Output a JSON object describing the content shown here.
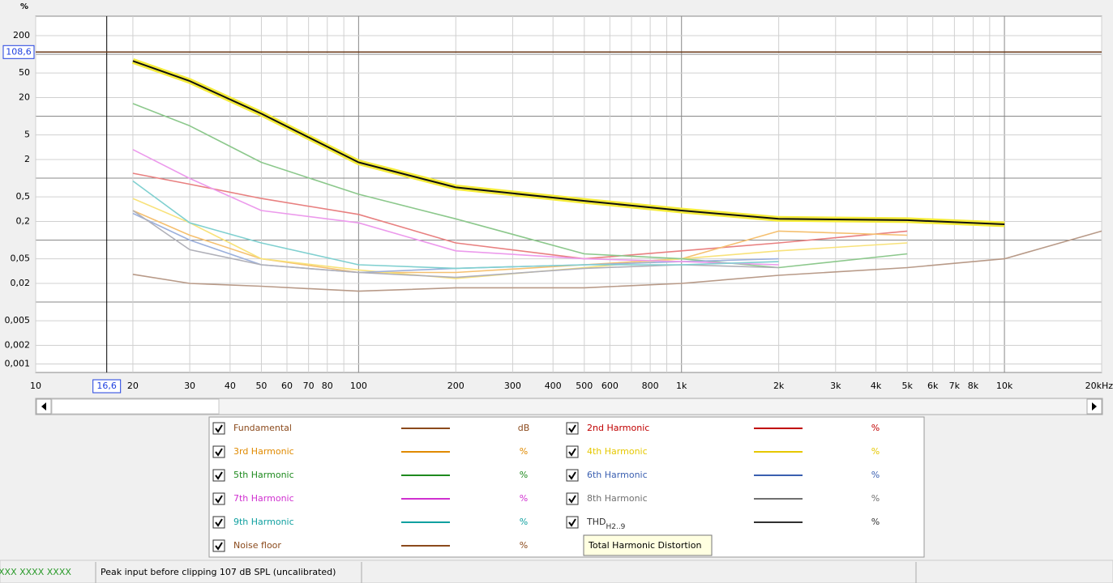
{
  "chart_data": {
    "type": "line",
    "y_unit": "%",
    "x_log": true,
    "y_log": true,
    "grid": true,
    "xlim": [
      10,
      20000
    ],
    "ylim": [
      0.00073,
      412
    ],
    "xticks": [
      10,
      20,
      30,
      40,
      50,
      60,
      70,
      80,
      100,
      200,
      300,
      400,
      500,
      600,
      800,
      {
        "value": 1000,
        "label": "1k"
      },
      {
        "value": 2000,
        "label": "2k"
      },
      {
        "value": 3000,
        "label": "3k"
      },
      {
        "value": 4000,
        "label": "4k"
      },
      {
        "value": 5000,
        "label": "5k"
      },
      {
        "value": 6000,
        "label": "6k"
      },
      {
        "value": 7000,
        "label": "7k"
      },
      {
        "value": 8000,
        "label": "8k"
      },
      {
        "value": 10000,
        "label": "10k"
      },
      {
        "value": 20000,
        "label": "20kHz"
      }
    ],
    "x_minor_grid": [
      90,
      700,
      900,
      9000
    ],
    "yticks": [
      200,
      50,
      20,
      5,
      2,
      {
        "value": 0.5,
        "label": "0,5"
      },
      {
        "value": 0.2,
        "label": "0,2"
      },
      {
        "value": 0.05,
        "label": "0,05"
      },
      {
        "value": 0.02,
        "label": "0,02"
      },
      {
        "value": 0.005,
        "label": "0,005"
      },
      {
        "value": 0.002,
        "label": "0,002"
      },
      {
        "value": 0.001,
        "label": "0,001"
      }
    ],
    "y_decade_grid": [
      100,
      10,
      1,
      0.1,
      0.01
    ],
    "cursor": {
      "x": 16.6,
      "x_label": "16,6",
      "y": 108.6,
      "y_label": "108,6"
    },
    "fundamental": {
      "name": "Fundamental",
      "unit": "dB",
      "color": "#8b4a1c",
      "checked": true
    },
    "x": [
      20,
      30,
      50,
      100,
      200,
      500,
      1000,
      2000,
      5000,
      10000,
      20000
    ],
    "series": [
      {
        "name": "2nd Harmonic",
        "unit": "%",
        "color": "#c00000",
        "trace_color": "#e88080",
        "checked": true,
        "values": [
          1.2,
          0.8,
          0.47,
          0.26,
          0.09,
          0.05,
          0.067,
          0.09,
          0.14,
          null,
          null
        ]
      },
      {
        "name": "3rd Harmonic",
        "unit": "%",
        "color": "#e08a00",
        "trace_color": "#f5c070",
        "checked": true,
        "values": [
          0.3,
          0.12,
          0.05,
          0.03,
          0.03,
          0.04,
          0.05,
          0.14,
          0.12,
          null,
          null
        ]
      },
      {
        "name": "4th Harmonic",
        "unit": "%",
        "color": "#e6c800",
        "trace_color": "#f8e27a",
        "checked": true,
        "values": [
          0.47,
          0.19,
          0.05,
          0.033,
          0.024,
          0.036,
          0.05,
          0.067,
          0.09,
          null,
          null
        ]
      },
      {
        "name": "5th Harmonic",
        "unit": "%",
        "color": "#1e8a1e",
        "trace_color": "#8cc88c",
        "checked": true,
        "values": [
          16,
          7,
          1.8,
          0.55,
          0.22,
          0.06,
          0.05,
          0.036,
          0.06,
          null,
          null
        ]
      },
      {
        "name": "6th Harmonic",
        "unit": "%",
        "color": "#3a5fb0",
        "trace_color": "#9cb0dc",
        "checked": true,
        "values": [
          0.27,
          0.1,
          0.04,
          0.03,
          0.035,
          0.04,
          0.045,
          0.05,
          null,
          null,
          null
        ]
      },
      {
        "name": "7th Harmonic",
        "unit": "%",
        "color": "#d030d0",
        "trace_color": "#ec9aec",
        "checked": true,
        "values": [
          2.9,
          0.99,
          0.3,
          0.19,
          0.067,
          0.05,
          0.045,
          0.04,
          null,
          null,
          null
        ]
      },
      {
        "name": "8th Harmonic",
        "unit": "%",
        "color": "#707070",
        "trace_color": "#b0b0b8",
        "checked": true,
        "values": [
          0.3,
          0.07,
          0.04,
          0.03,
          0.025,
          0.035,
          0.04,
          0.036,
          null,
          null,
          null
        ]
      },
      {
        "name": "9th Harmonic",
        "unit": "%",
        "color": "#10a0a0",
        "trace_color": "#80d0d0",
        "checked": true,
        "values": [
          0.9,
          0.19,
          0.09,
          0.04,
          0.035,
          0.04,
          0.04,
          0.045,
          null,
          null,
          null
        ]
      },
      {
        "name": "THD",
        "name_sub": "H2..9",
        "unit": "%",
        "color": "#303030",
        "trace_color": "#101010",
        "highlight_color": "#f5ec3a",
        "checked": true,
        "values": [
          78,
          37,
          11,
          1.8,
          0.71,
          0.43,
          0.3,
          0.22,
          0.21,
          0.18,
          null
        ]
      },
      {
        "name": "Noise floor",
        "unit": "%",
        "color": "#8b4a1c",
        "trace_color": "#b89a88",
        "checked": true,
        "values": [
          0.028,
          0.02,
          0.018,
          0.015,
          0.017,
          0.017,
          0.02,
          0.027,
          0.036,
          0.05,
          0.14
        ]
      }
    ]
  },
  "tooltip": "Total Harmonic Distortion",
  "status_bar": [
    "XXX XXXX XXXX",
    "Peak input before clipping 107 dB SPL (uncalibrated)"
  ]
}
